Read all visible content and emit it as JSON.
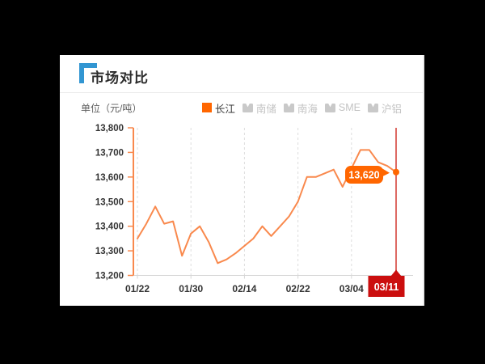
{
  "card": {
    "title": "市场对比"
  },
  "chart": {
    "unit_label": "单位（元/吨）",
    "legend_items": [
      {
        "label": "长江",
        "active": true
      },
      {
        "label": "南储",
        "active": false
      },
      {
        "label": "南海",
        "active": false
      },
      {
        "label": "SME",
        "active": false
      },
      {
        "label": "沪铝",
        "active": false
      }
    ]
  },
  "colors": {
    "accent_blue": "#3296d2",
    "accent_orange": "#ff6600",
    "line": "#f9894d",
    "axis_orange": "#f9894d",
    "grid": "#dddddd",
    "axis_gray": "#d6d6d6",
    "tick_text": "#333333",
    "pointer_line": "#dd6a64",
    "pointer_badge": "#cb0e0e",
    "legend_inactive_icon": "#c9c9c9",
    "tooltip_text": "#ffffff"
  },
  "chart_data": {
    "type": "line",
    "title": "市场对比",
    "unit": "元/吨",
    "legend_position": "top-right",
    "grid": "vertical-dashed",
    "ylim": [
      13200,
      13800
    ],
    "y_ticks": [
      13800,
      13700,
      13600,
      13500,
      13400,
      13300,
      13200
    ],
    "y_tick_labels": [
      "13,800",
      "13,700",
      "13,600",
      "13,500",
      "13,400",
      "13,300",
      "13,200"
    ],
    "x_tick_labels": [
      "01/22",
      "01/30",
      "02/14",
      "02/22",
      "03/04",
      "03/11"
    ],
    "x_tick_indices": [
      0,
      6,
      12,
      18,
      24,
      29
    ],
    "series": [
      {
        "name": "长江",
        "color": "#f9894d",
        "values": [
          13350,
          13410,
          13480,
          13410,
          13420,
          13280,
          13370,
          13400,
          13335,
          13250,
          13265,
          13290,
          13320,
          13350,
          13400,
          13360,
          13400,
          13440,
          13500,
          13600,
          13600,
          13615,
          13630,
          13560,
          13635,
          13710,
          13710,
          13660,
          13645,
          13620
        ]
      }
    ],
    "inactive_series": [
      "南储",
      "南海",
      "SME",
      "沪铝"
    ],
    "highlight": {
      "index": 29,
      "value": 13620,
      "value_label": "13,620",
      "date_label": "03/11"
    }
  }
}
